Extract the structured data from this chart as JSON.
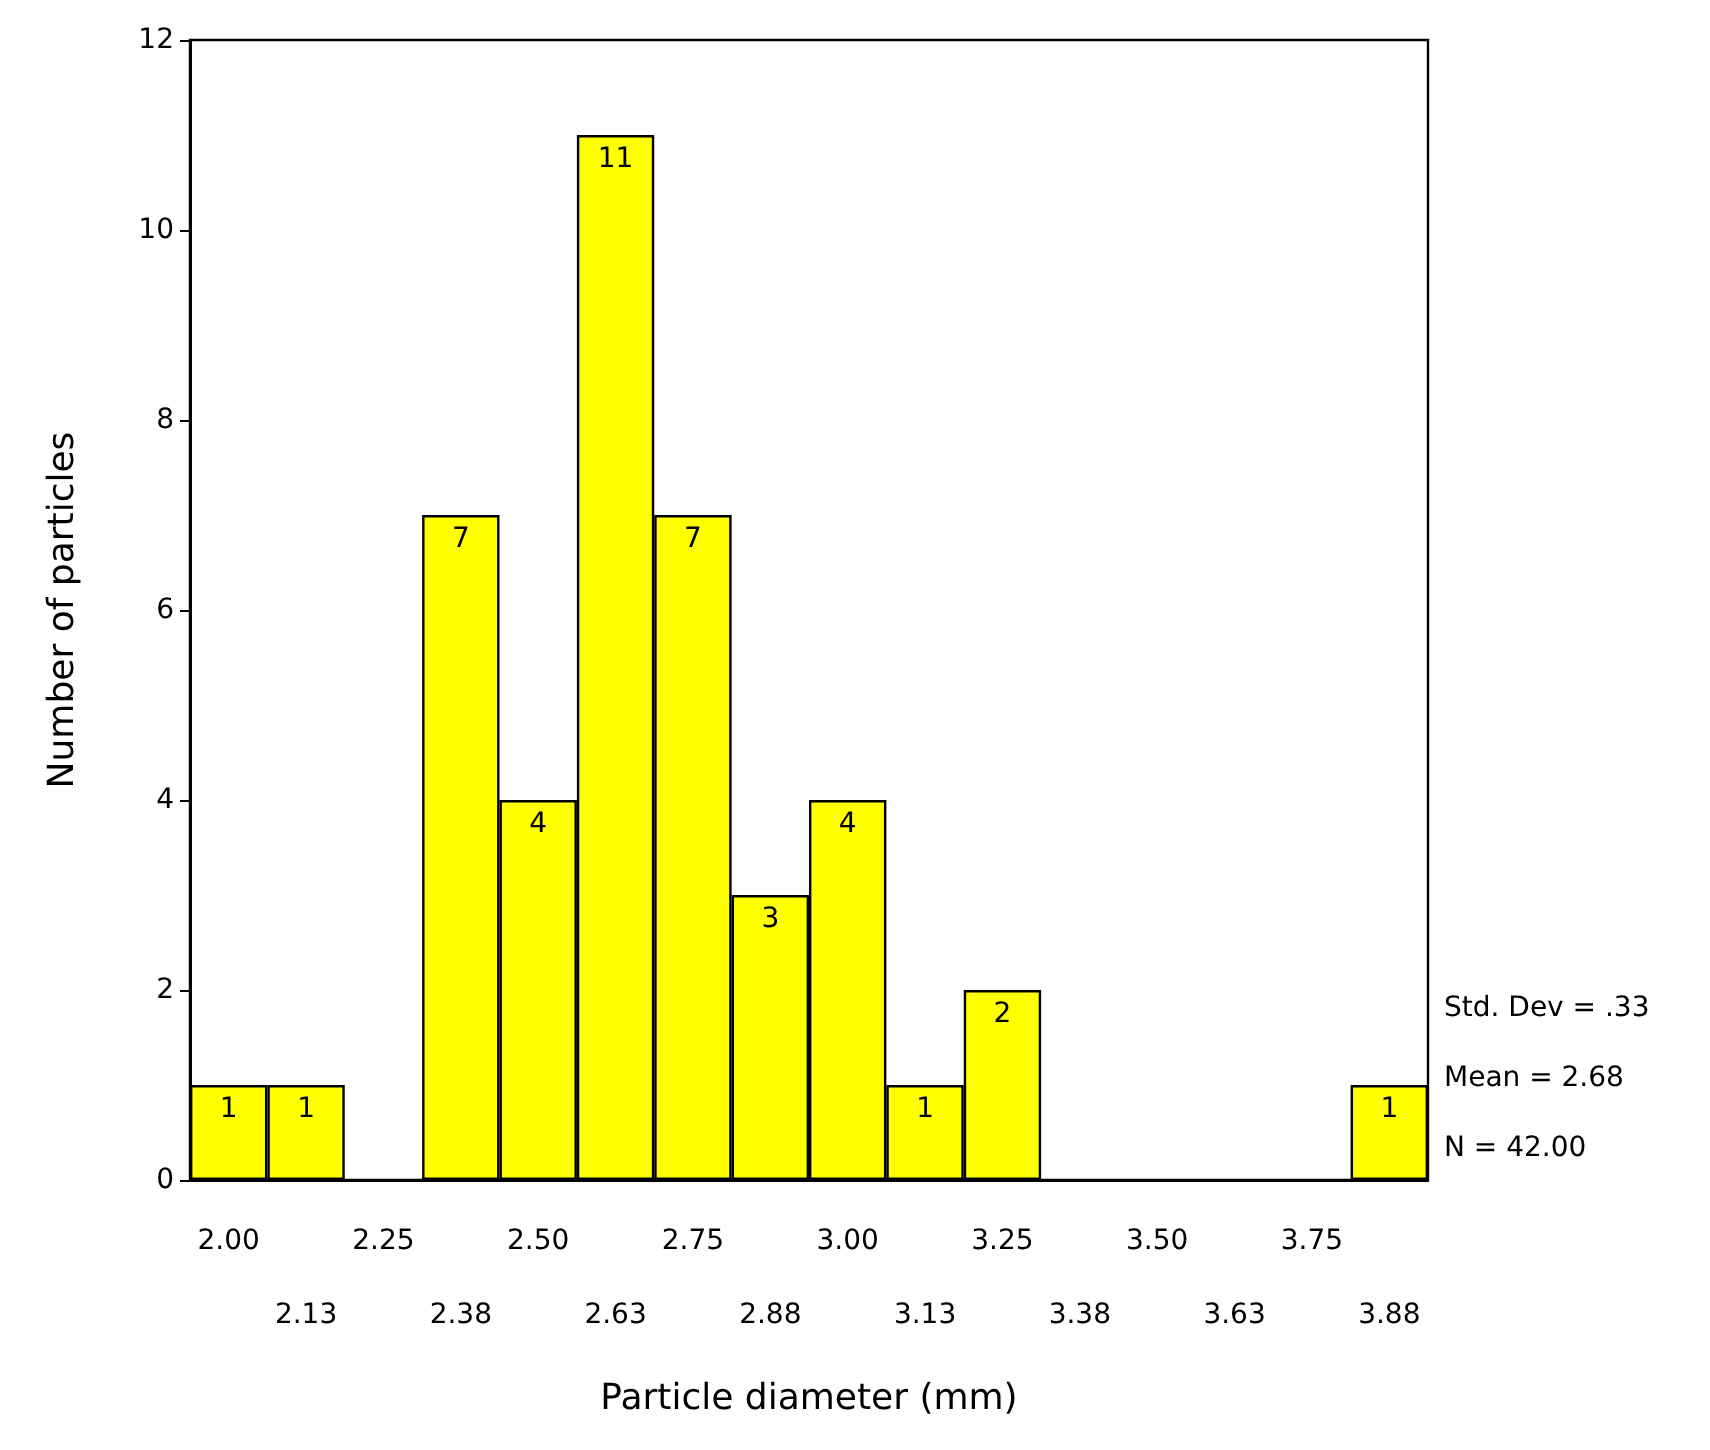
{
  "chart_data": {
    "type": "bar",
    "xlabel": "Particle diameter (mm)",
    "ylabel": "Number of particles",
    "categories": [
      "2.00",
      "2.13",
      "2.25",
      "2.38",
      "2.50",
      "2.63",
      "2.75",
      "2.88",
      "3.00",
      "3.13",
      "3.25",
      "3.38",
      "3.50",
      "3.63",
      "3.75",
      "3.88"
    ],
    "values": [
      1,
      1,
      0,
      7,
      4,
      11,
      7,
      3,
      4,
      1,
      2,
      0,
      0,
      0,
      0,
      1
    ],
    "value_labels": [
      "1",
      "1",
      null,
      "7",
      "4",
      "11",
      "7",
      "3",
      "4",
      "1",
      "2",
      null,
      null,
      null,
      null,
      "1"
    ],
    "color": "#ffff00",
    "ylim": [
      0,
      12
    ],
    "yticks": [
      0,
      2,
      4,
      6,
      8,
      10,
      12
    ],
    "grid": false,
    "annotations": [
      "Std. Dev = .33",
      "Mean = 2.68",
      "N = 42.00"
    ]
  }
}
